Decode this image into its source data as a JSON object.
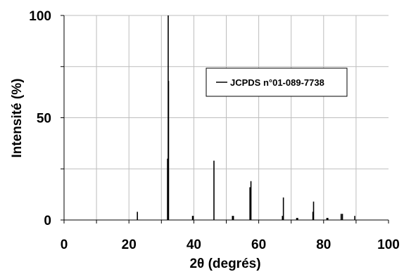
{
  "chart_data": {
    "type": "bar",
    "xlabel": "2θ (degrés)",
    "ylabel": "Intensité (%)",
    "xlim": [
      0,
      100
    ],
    "ylim": [
      0,
      100
    ],
    "x_ticks": [
      "0",
      "20",
      "40",
      "60",
      "80",
      "100"
    ],
    "y_ticks": [
      "0",
      "50",
      "100"
    ],
    "grid": true,
    "legend_position": "top-right",
    "series": [
      {
        "name": "JCPDS n°01-089-7738",
        "color": "#000000",
        "x": [
          22.6,
          31.9,
          32.1,
          32.2,
          39.6,
          39.8,
          46.2,
          51.9,
          52.2,
          57.3,
          57.6,
          67.3,
          67.6,
          71.7,
          72.0,
          76.7,
          76.9,
          81.0,
          81.3,
          85.4,
          85.8,
          89.6
        ],
        "values": [
          4,
          30,
          100,
          68,
          2,
          2,
          29,
          2,
          2,
          16,
          19,
          2,
          11,
          1,
          1,
          4,
          9,
          1,
          1,
          3,
          3,
          2
        ]
      }
    ]
  },
  "colors": {
    "grid": "#bdbdbd",
    "axis": "#000000",
    "series": "#000000"
  }
}
